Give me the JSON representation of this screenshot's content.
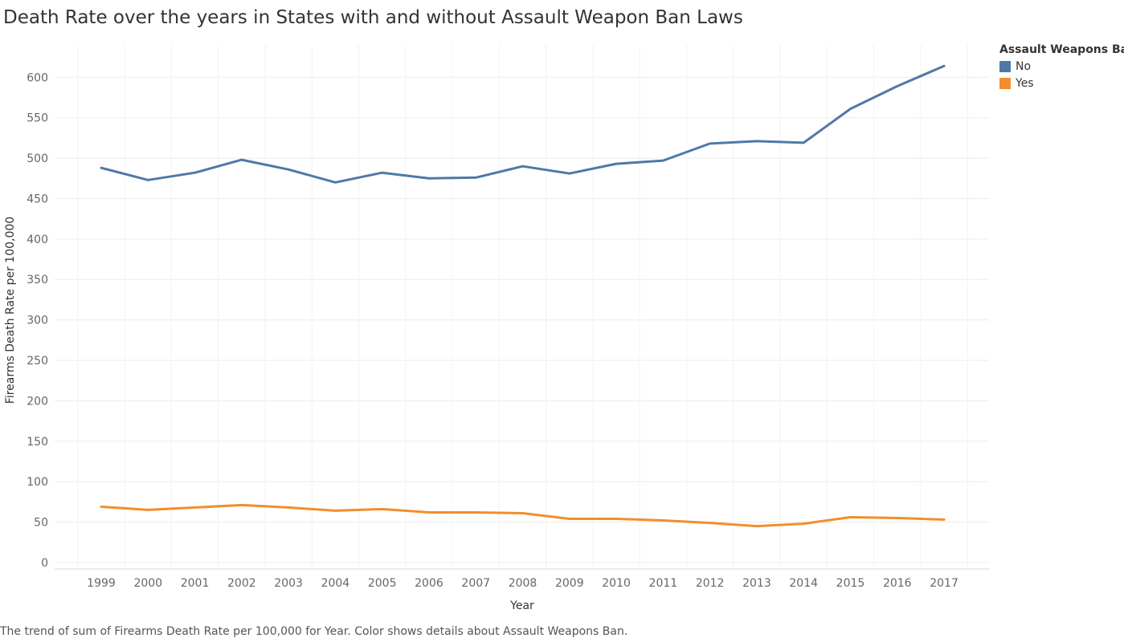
{
  "title": "Death Rate over the years in States with and without Assault Weapon Ban Laws",
  "footnote": "The trend of sum of Firearms Death Rate per 100,000 for Year.  Color shows details about Assault Weapons Ban.",
  "legend": {
    "title": "Assault Weapons Ban",
    "items": [
      {
        "label": "No",
        "color": "#4e79a7"
      },
      {
        "label": "Yes",
        "color": "#f28e2b"
      }
    ]
  },
  "chart_data": {
    "type": "line",
    "title": "Death Rate over the years in States with and without Assault Weapon Ban Laws",
    "xlabel": "Year",
    "ylabel": "Firearms Death Rate per 100,000",
    "x": [
      "1999",
      "2000",
      "2001",
      "2002",
      "2003",
      "2004",
      "2005",
      "2006",
      "2007",
      "2008",
      "2009",
      "2010",
      "2011",
      "2012",
      "2013",
      "2014",
      "2015",
      "2016",
      "2017"
    ],
    "yticks": [
      0,
      50,
      100,
      150,
      200,
      250,
      300,
      350,
      400,
      450,
      500,
      550,
      600
    ],
    "ylim": [
      -8,
      640
    ],
    "grid": true,
    "legend_position": "top-right",
    "series": [
      {
        "name": "No",
        "color": "#4e79a7",
        "values": [
          488,
          473,
          482,
          498,
          486,
          470,
          482,
          475,
          476,
          490,
          481,
          493,
          497,
          518,
          521,
          519,
          561,
          589,
          614
        ]
      },
      {
        "name": "Yes",
        "color": "#f28e2b",
        "values": [
          69,
          65,
          68,
          71,
          68,
          64,
          66,
          62,
          62,
          61,
          54,
          54,
          52,
          49,
          45,
          48,
          56,
          55,
          53
        ]
      }
    ]
  }
}
